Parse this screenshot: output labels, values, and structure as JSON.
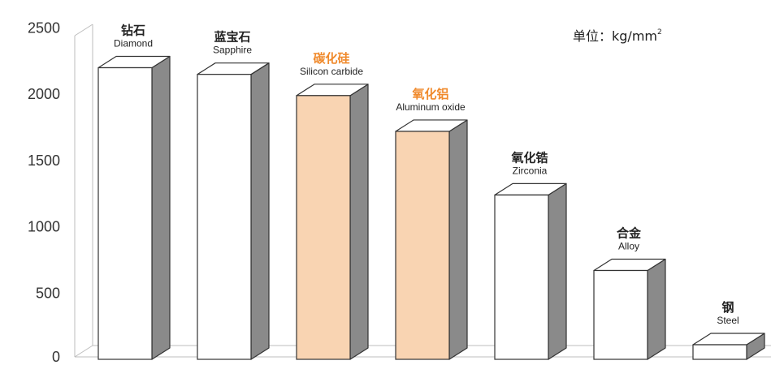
{
  "chart_data": {
    "type": "bar",
    "unit_prefix": "单位：kg/mm",
    "unit_superscript": "2",
    "ylim": [
      0,
      2500
    ],
    "yticks": [
      "0",
      "500",
      "1000",
      "1500",
      "2000",
      "2500"
    ],
    "categories": [
      {
        "cn": "钻石",
        "en": "Diamond",
        "highlight": false
      },
      {
        "cn": "蓝宝石",
        "en": "Sapphire",
        "highlight": false
      },
      {
        "cn": "碳化硅",
        "en": "Silicon carbide",
        "highlight": true
      },
      {
        "cn": "氧化铝",
        "en": "Aluminum oxide",
        "highlight": true
      },
      {
        "cn": "氧化锆",
        "en": "Zirconia",
        "highlight": false
      },
      {
        "cn": "合金",
        "en": "Alloy",
        "highlight": false
      },
      {
        "cn": "钢",
        "en": "Steel",
        "highlight": false
      }
    ],
    "values": [
      2200,
      2150,
      1990,
      1720,
      1240,
      670,
      110
    ],
    "colors": {
      "bar_face": "#ffffff",
      "bar_highlight": "#f9d4b2",
      "bar_side": "#8a8a8a",
      "highlight_label": "#f08a2c",
      "label": "#222222",
      "axis": "#bdbdbd"
    }
  }
}
